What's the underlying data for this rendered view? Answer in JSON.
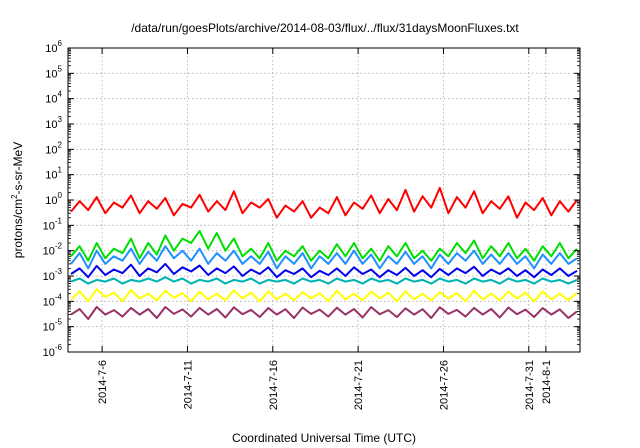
{
  "chart_data": {
    "type": "line",
    "title": "/data/run/goesPlots/archive/2014-08-03/flux/../flux/31daysMoonFluxes.txt",
    "xlabel": "Coordinated Universal Time (UTC)",
    "ylabel": {
      "pre": "protons/cm",
      "sup": "2",
      "post": "-s-sr-MeV"
    },
    "yscale": "log",
    "ylim": [
      1e-06,
      1000000.0
    ],
    "xlim": [
      "2014-07-04T00:00",
      "2014-08-03T00:00"
    ],
    "yticks": [
      {
        "base": "10",
        "exp": "-6"
      },
      {
        "base": "10",
        "exp": "-5"
      },
      {
        "base": "10",
        "exp": "-4"
      },
      {
        "base": "10",
        "exp": "-3"
      },
      {
        "base": "10",
        "exp": "-2"
      },
      {
        "base": "10",
        "exp": "-1"
      },
      {
        "base": "10",
        "exp": "0"
      },
      {
        "base": "10",
        "exp": "1"
      },
      {
        "base": "10",
        "exp": "2"
      },
      {
        "base": "10",
        "exp": "3"
      },
      {
        "base": "10",
        "exp": "4"
      },
      {
        "base": "10",
        "exp": "5"
      },
      {
        "base": "10",
        "exp": "6"
      }
    ],
    "xticks": [
      "2014-7-6",
      "2014-7-11",
      "2014-7-16",
      "2014-7-21",
      "2014-7-26",
      "2014-7-31",
      "2014-8-1"
    ],
    "grid": true,
    "series": [
      {
        "color": "#ff0000",
        "values": [
          0.35,
          0.9,
          0.4,
          1.3,
          0.3,
          0.8,
          0.5,
          1.5,
          0.3,
          0.9,
          0.45,
          1.2,
          0.25,
          0.7,
          0.5,
          1.6,
          0.35,
          0.9,
          0.4,
          2.2,
          0.3,
          0.8,
          0.5,
          1.1,
          0.2,
          0.6,
          0.35,
          0.9,
          0.2,
          0.5,
          0.3,
          1.3,
          0.25,
          0.8,
          0.45,
          1.5,
          0.3,
          1.1,
          0.4,
          2.5,
          0.35,
          1.4,
          0.5,
          3.0,
          0.3,
          1.3,
          0.5,
          2.2,
          0.3,
          0.9,
          0.45,
          1.4,
          0.2,
          0.8,
          0.4,
          1.2,
          0.25,
          0.9,
          0.35,
          1.0
        ]
      },
      {
        "color": "#00dd00",
        "values": [
          0.006,
          0.015,
          0.004,
          0.02,
          0.005,
          0.012,
          0.008,
          0.03,
          0.005,
          0.02,
          0.007,
          0.04,
          0.01,
          0.03,
          0.02,
          0.06,
          0.012,
          0.05,
          0.01,
          0.03,
          0.006,
          0.012,
          0.005,
          0.02,
          0.004,
          0.01,
          0.006,
          0.015,
          0.004,
          0.01,
          0.005,
          0.018,
          0.006,
          0.02,
          0.005,
          0.012,
          0.004,
          0.015,
          0.006,
          0.02,
          0.005,
          0.01,
          0.004,
          0.012,
          0.006,
          0.02,
          0.008,
          0.025,
          0.005,
          0.015,
          0.006,
          0.02,
          0.005,
          0.012,
          0.004,
          0.015,
          0.006,
          0.02,
          0.005,
          0.012
        ]
      },
      {
        "color": "#1e90ff",
        "values": [
          0.003,
          0.008,
          0.002,
          0.01,
          0.003,
          0.006,
          0.004,
          0.012,
          0.003,
          0.009,
          0.004,
          0.015,
          0.005,
          0.01,
          0.004,
          0.012,
          0.003,
          0.008,
          0.004,
          0.01,
          0.003,
          0.006,
          0.003,
          0.009,
          0.002,
          0.006,
          0.003,
          0.008,
          0.002,
          0.006,
          0.003,
          0.008,
          0.003,
          0.01,
          0.003,
          0.007,
          0.002,
          0.006,
          0.003,
          0.009,
          0.003,
          0.006,
          0.002,
          0.007,
          0.003,
          0.008,
          0.004,
          0.01,
          0.003,
          0.007,
          0.003,
          0.008,
          0.003,
          0.006,
          0.002,
          0.007,
          0.003,
          0.008,
          0.003,
          0.005
        ]
      },
      {
        "color": "#0000ee",
        "values": [
          0.0012,
          0.002,
          0.0009,
          0.0025,
          0.0011,
          0.0018,
          0.0013,
          0.0028,
          0.001,
          0.002,
          0.0014,
          0.003,
          0.0012,
          0.0022,
          0.0015,
          0.0026,
          0.0011,
          0.002,
          0.0013,
          0.0024,
          0.001,
          0.0018,
          0.0012,
          0.0022,
          0.0009,
          0.0017,
          0.0012,
          0.002,
          0.0009,
          0.0016,
          0.0011,
          0.002,
          0.001,
          0.0022,
          0.0012,
          0.0018,
          0.0009,
          0.0017,
          0.0011,
          0.0021,
          0.001,
          0.0017,
          0.0009,
          0.0019,
          0.0011,
          0.002,
          0.0013,
          0.0023,
          0.001,
          0.0018,
          0.0012,
          0.002,
          0.001,
          0.0017,
          0.0009,
          0.0018,
          0.0011,
          0.002,
          0.001,
          0.0016
        ]
      },
      {
        "color": "#00b3b3",
        "values": [
          0.0006,
          0.0008,
          0.0005,
          0.0007,
          0.0006,
          0.0008,
          0.0005,
          0.0007,
          0.0006,
          0.0008,
          0.0006,
          0.0009,
          0.0006,
          0.0008,
          0.0005,
          0.0007,
          0.0006,
          0.0008,
          0.0005,
          0.0007,
          0.0006,
          0.0008,
          0.0005,
          0.0007,
          0.0006,
          0.0007,
          0.0005,
          0.0008,
          0.0006,
          0.0007,
          0.0005,
          0.0008,
          0.0006,
          0.0007,
          0.0005,
          0.0008,
          0.0006,
          0.0007,
          0.0005,
          0.0008,
          0.0006,
          0.0007,
          0.0005,
          0.0008,
          0.0006,
          0.0007,
          0.0005,
          0.0008,
          0.0006,
          0.0007,
          0.0005,
          0.0008,
          0.0006,
          0.0007,
          0.0005,
          0.0008,
          0.0006,
          0.0007,
          0.0005,
          0.0007
        ]
      },
      {
        "color": "#ffff00",
        "values": [
          0.00012,
          0.00025,
          0.0001,
          0.0003,
          0.00015,
          0.00022,
          0.0001,
          0.00028,
          0.00013,
          0.0002,
          0.00011,
          0.00026,
          0.00014,
          0.00021,
          0.0001,
          0.00024,
          0.00012,
          0.0002,
          0.00011,
          0.00027,
          0.00013,
          0.00022,
          0.0001,
          0.00025,
          0.00012,
          0.0002,
          0.00011,
          0.00023,
          0.00013,
          0.00021,
          0.0001,
          0.00026,
          0.00012,
          0.0002,
          0.00011,
          0.00024,
          0.00013,
          0.00022,
          0.0001,
          0.00025,
          0.00012,
          0.0002,
          0.00011,
          0.00023,
          0.00013,
          0.00021,
          0.0001,
          0.00026,
          0.00012,
          0.0002,
          0.00011,
          0.00024,
          0.00013,
          0.00022,
          0.0001,
          0.00025,
          0.00012,
          0.0002,
          0.00011,
          0.00022
        ]
      },
      {
        "color": "#993366",
        "values": [
          3e-05,
          5e-05,
          2e-05,
          6e-05,
          3e-05,
          4.5e-05,
          2.5e-05,
          5.5e-05,
          3e-05,
          5e-05,
          2.2e-05,
          6e-05,
          3.2e-05,
          4.8e-05,
          2.5e-05,
          5.5e-05,
          3e-05,
          5e-05,
          2.3e-05,
          5.8e-05,
          3.1e-05,
          4.6e-05,
          2.4e-05,
          5.4e-05,
          3e-05,
          4.9e-05,
          2.2e-05,
          5.7e-05,
          3.2e-05,
          4.7e-05,
          2.5e-05,
          5.6e-05,
          3e-05,
          5e-05,
          2.3e-05,
          5.9e-05,
          3.1e-05,
          4.5e-05,
          2.4e-05,
          5.3e-05,
          3e-05,
          4.9e-05,
          2.2e-05,
          5.8e-05,
          3.2e-05,
          4.6e-05,
          2.5e-05,
          5.5e-05,
          3e-05,
          5e-05,
          2.3e-05,
          5.7e-05,
          3.1e-05,
          4.7e-05,
          2.4e-05,
          5.4e-05,
          3e-05,
          4.8e-05,
          2.2e-05,
          4e-05
        ]
      }
    ]
  }
}
